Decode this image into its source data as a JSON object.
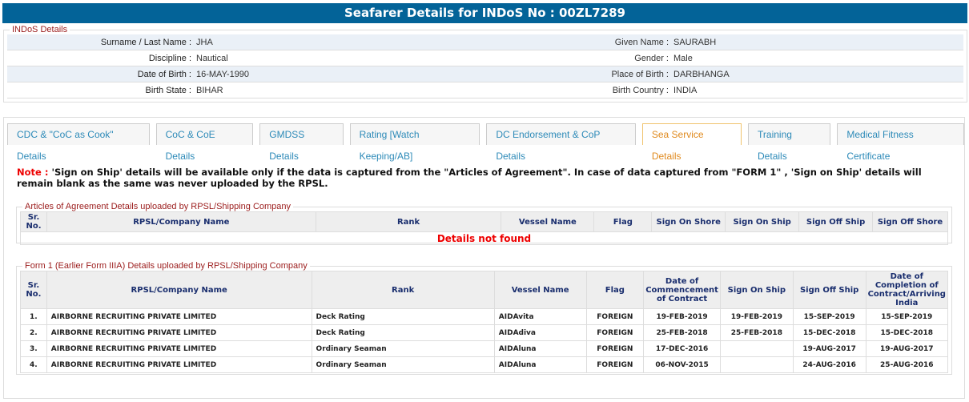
{
  "header": {
    "title": "Seafarer Details for INDoS No : 00ZL7289"
  },
  "indos": {
    "legend": "INDoS Details",
    "rows": [
      {
        "l1": "Surname / Last Name :",
        "v1": "JHA",
        "l2": "Given Name :",
        "v2": "SAURABH"
      },
      {
        "l1": "Discipline :",
        "v1": "Nautical",
        "l2": "Gender :",
        "v2": "Male"
      },
      {
        "l1": "Date of Birth :",
        "v1": "16-MAY-1990",
        "l2": "Place of Birth :",
        "v2": "DARBHANGA"
      },
      {
        "l1": "Birth State :",
        "v1": "BIHAR",
        "l2": "Birth Country :",
        "v2": "INDIA"
      }
    ]
  },
  "tabs": [
    {
      "label": "CDC & \"CoC as Cook\" Details"
    },
    {
      "label": "CoC & CoE Details"
    },
    {
      "label": "GMDSS Details"
    },
    {
      "label": "Rating [Watch Keeping/AB]"
    },
    {
      "label": "DC Endorsement & CoP Details"
    },
    {
      "label": "Sea Service Details",
      "active": true
    },
    {
      "label": "Training Details"
    },
    {
      "label": "Medical Fitness Certificate"
    }
  ],
  "note": {
    "prefix": "Note :",
    "text": " 'Sign on Ship' details will be available only if the data is captured from the \"Articles of Agreement\". In case of data captured from \"FORM 1\" , 'Sign on Ship' details will remain blank as the same was never uploaded by the RPSL."
  },
  "articles": {
    "legend": "Articles of Agreement Details uploaded by RPSL/Shipping Company",
    "columns": [
      "Sr. No.",
      "RPSL/Company Name",
      "Rank",
      "Vessel Name",
      "Flag",
      "Sign On Shore",
      "Sign On Ship",
      "Sign Off Ship",
      "Sign Off Shore"
    ],
    "empty": "Details not found"
  },
  "form1": {
    "legend": "Form 1 (Earlier Form IIIA) Details uploaded by RPSL/Shipping Company",
    "columns": [
      "Sr. No.",
      "RPSL/Company Name",
      "Rank",
      "Vessel Name",
      "Flag",
      "Date of Commencement of Contract",
      "Sign On Ship",
      "Sign Off Ship",
      "Date of Completion of Contract/Arriving India"
    ],
    "rows": [
      [
        "1.",
        "AIRBORNE RECRUITING PRIVATE LIMITED",
        "Deck Rating",
        "AIDAvita",
        "FOREIGN",
        "19-FEB-2019",
        "19-FEB-2019",
        "15-SEP-2019",
        "15-SEP-2019"
      ],
      [
        "2.",
        "AIRBORNE RECRUITING PRIVATE LIMITED",
        "Deck Rating",
        "AIDAdiva",
        "FOREIGN",
        "25-FEB-2018",
        "25-FEB-2018",
        "15-DEC-2018",
        "15-DEC-2018"
      ],
      [
        "3.",
        "AIRBORNE RECRUITING PRIVATE LIMITED",
        "Ordinary Seaman",
        "AIDAluna",
        "FOREIGN",
        "17-DEC-2016",
        "",
        "19-AUG-2017",
        "19-AUG-2017"
      ],
      [
        "4.",
        "AIRBORNE RECRUITING PRIVATE LIMITED",
        "Ordinary Seaman",
        "AIDAluna",
        "FOREIGN",
        "06-NOV-2015",
        "",
        "24-AUG-2016",
        "25-AUG-2016"
      ]
    ]
  }
}
